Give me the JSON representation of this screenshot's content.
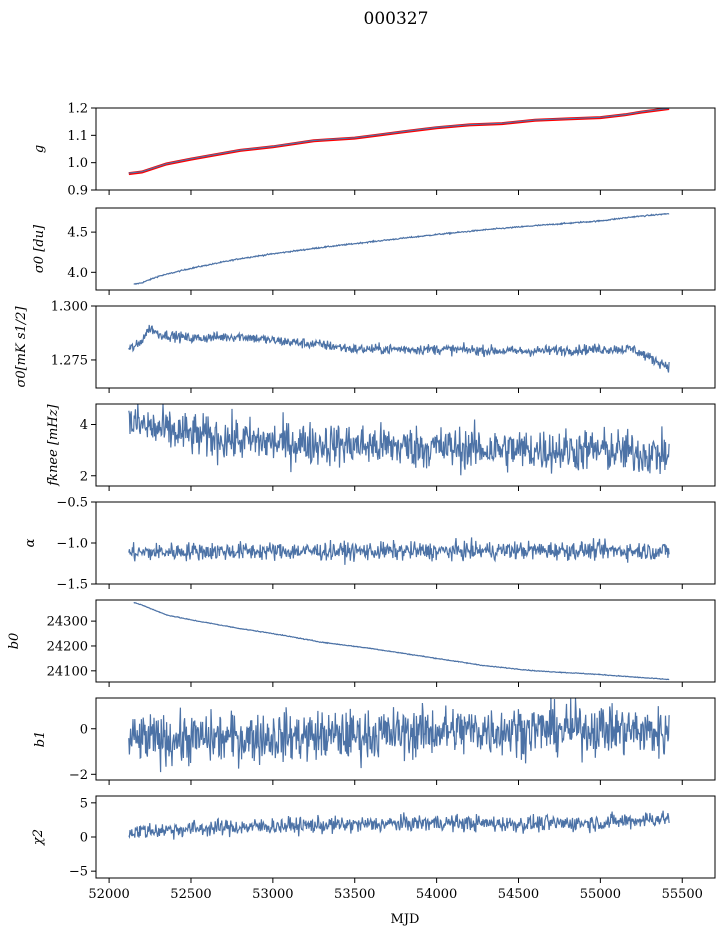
{
  "figure": {
    "title": "000327",
    "xlabel": "MJD",
    "xticks": [
      52000,
      52500,
      53000,
      53500,
      54000,
      54500,
      55000,
      55500
    ],
    "xlim": [
      51920,
      55700
    ]
  },
  "colors": {
    "series": "#4c72a6",
    "model": "#ff0000",
    "axis": "#000000"
  },
  "chart_data": [
    {
      "type": "line",
      "id": "g",
      "ylabel": "g",
      "ylim": [
        0.9,
        1.2
      ],
      "yticks": [
        "0.9",
        "1.0",
        "1.1",
        "1.2"
      ],
      "ytick_values": [
        0.9,
        1.0,
        1.1,
        1.2
      ],
      "series": [
        {
          "x": [
            52120,
            52200,
            52350,
            52500,
            52800,
            53000,
            53250,
            53500,
            53800,
            54000,
            54200,
            54400,
            54600,
            54800,
            55000,
            55150,
            55250,
            55420
          ],
          "y": [
            0.96,
            0.966,
            0.995,
            1.013,
            1.045,
            1.058,
            1.08,
            1.09,
            1.113,
            1.128,
            1.138,
            1.143,
            1.155,
            1.16,
            1.165,
            1.175,
            1.185,
            1.198
          ]
        },
        {
          "x": [
            52120,
            52200,
            52350,
            52500,
            52800,
            53000,
            53250,
            53500,
            53800,
            54000,
            54200,
            54400,
            54600,
            54800,
            55000,
            55150,
            55250,
            55420
          ],
          "y": [
            0.962,
            0.967,
            0.996,
            1.014,
            1.046,
            1.059,
            1.081,
            1.091,
            1.114,
            1.129,
            1.139,
            1.144,
            1.156,
            1.161,
            1.166,
            1.176,
            1.186,
            1.199
          ]
        }
      ]
    },
    {
      "type": "line",
      "id": "sigma0",
      "ylabel": "σ0 [du]",
      "ylim": [
        3.78,
        4.8
      ],
      "yticks": [
        "4.0",
        "4.5"
      ],
      "ytick_values": [
        4.0,
        4.5
      ],
      "series": [
        {
          "x": [
            52150,
            52200,
            52300,
            52500,
            52800,
            53000,
            53300,
            53600,
            54000,
            54300,
            54600,
            54800,
            55000,
            55200,
            55420
          ],
          "y": [
            3.85,
            3.87,
            3.95,
            4.05,
            4.17,
            4.23,
            4.31,
            4.38,
            4.47,
            4.53,
            4.58,
            4.61,
            4.64,
            4.69,
            4.73
          ]
        }
      ]
    },
    {
      "type": "line",
      "id": "sigma0k",
      "ylabel": "σ0[mK s1/2]",
      "ylim": [
        1.262,
        1.3
      ],
      "yticks": [
        "1.275",
        "1.300"
      ],
      "ytick_values": [
        1.275,
        1.3
      ],
      "series": [
        {
          "x": [
            52120,
            52180,
            52250,
            52300,
            52500,
            52800,
            53000,
            53300,
            53500,
            54000,
            54500,
            55000,
            55200,
            55300,
            55420
          ],
          "y": [
            1.28,
            1.282,
            1.29,
            1.287,
            1.285,
            1.286,
            1.284,
            1.282,
            1.28,
            1.28,
            1.279,
            1.28,
            1.28,
            1.276,
            1.272
          ]
        }
      ]
    },
    {
      "type": "line",
      "id": "fknee",
      "ylabel": "fknee [mHz]",
      "ylim": [
        1.6,
        4.8
      ],
      "yticks": [
        "2",
        "4"
      ],
      "ytick_values": [
        2,
        4
      ],
      "series": [
        {
          "x": [
            52120,
            52300,
            52600,
            53000,
            53500,
            54000,
            54500,
            55000,
            55420
          ],
          "y": [
            4.1,
            3.8,
            3.5,
            3.3,
            3.2,
            3.1,
            3.0,
            3.0,
            2.8
          ]
        }
      ]
    },
    {
      "type": "line",
      "id": "alpha",
      "ylabel": "α",
      "ylim": [
        -1.5,
        -0.5
      ],
      "yticks": [
        "−1.5",
        "−1.0",
        "−0.5"
      ],
      "ytick_values": [
        -1.5,
        -1.0,
        -0.5
      ],
      "series": [
        {
          "x": [
            52120,
            52500,
            53000,
            53500,
            54000,
            54500,
            55000,
            55420
          ],
          "y": [
            -1.12,
            -1.1,
            -1.1,
            -1.1,
            -1.1,
            -1.09,
            -1.09,
            -1.1
          ]
        }
      ]
    },
    {
      "type": "line",
      "id": "b0",
      "ylabel": "b0",
      "ylim": [
        24055,
        24385
      ],
      "yticks": [
        "24100",
        "24200",
        "24300"
      ],
      "ytick_values": [
        24100,
        24200,
        24300
      ],
      "series": [
        {
          "x": [
            52150,
            52200,
            52350,
            52500,
            52800,
            53000,
            53300,
            53600,
            54000,
            54300,
            54600,
            55000,
            55200,
            55420
          ],
          "y": [
            24375,
            24365,
            24325,
            24305,
            24270,
            24250,
            24215,
            24190,
            24150,
            24120,
            24100,
            24085,
            24075,
            24065
          ]
        }
      ]
    },
    {
      "type": "line",
      "id": "b1",
      "ylabel": "b1",
      "ylim": [
        -2.25,
        1.35
      ],
      "yticks": [
        "−2",
        "0"
      ],
      "ytick_values": [
        -2,
        0
      ],
      "series": [
        {
          "x": [
            52120,
            52500,
            53000,
            53500,
            54000,
            54500,
            55000,
            55420
          ],
          "y": [
            -0.5,
            -0.45,
            -0.35,
            -0.3,
            -0.1,
            -0.05,
            0.0,
            -0.2
          ]
        }
      ]
    },
    {
      "type": "line",
      "id": "chi2",
      "ylabel": "χ2",
      "ylim": [
        -6,
        6
      ],
      "yticks": [
        "−5",
        "0",
        "5"
      ],
      "ytick_values": [
        -5,
        0,
        5
      ],
      "series": [
        {
          "x": [
            52120,
            52500,
            53000,
            53500,
            54000,
            54500,
            55000,
            55420
          ],
          "y": [
            0.8,
            1.2,
            1.6,
            1.8,
            2.1,
            1.9,
            2.1,
            2.8
          ]
        }
      ]
    }
  ]
}
